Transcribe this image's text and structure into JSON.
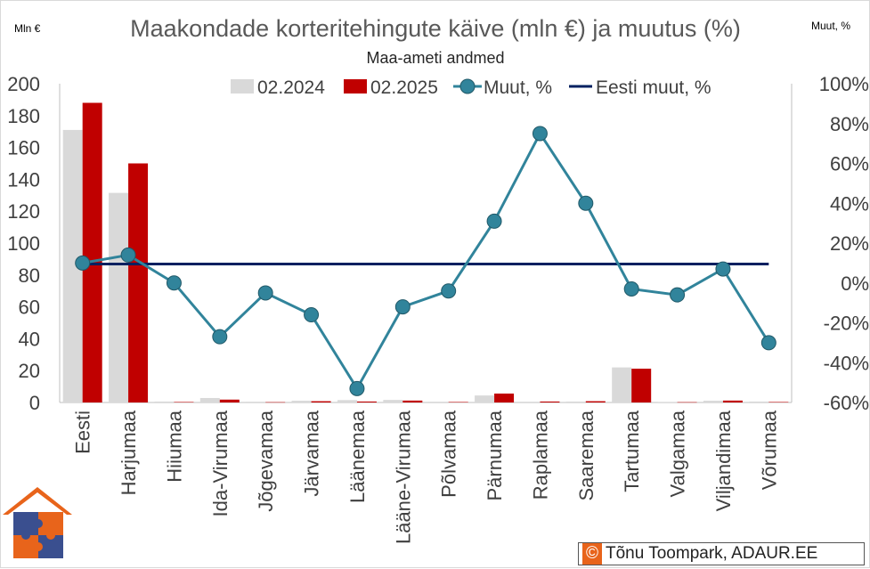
{
  "chart_data": {
    "type": "bar",
    "title": "Maakondade korteritehingute käive (mln €) ja muutus (%)",
    "subtitle": "Maa-ameti andmed",
    "y_left_unit": "Mln €",
    "y_right_unit": "Muut, %",
    "ylim_left": [
      0,
      200
    ],
    "ylim_right": [
      -60,
      100
    ],
    "left_ticks": [
      0,
      20,
      40,
      60,
      80,
      100,
      120,
      140,
      160,
      180,
      200
    ],
    "right_ticks": [
      "-60%",
      "-40%",
      "-20%",
      "0%",
      "20%",
      "40%",
      "60%",
      "80%",
      "100%"
    ],
    "right_tick_values": [
      -60,
      -40,
      -20,
      0,
      20,
      40,
      60,
      80,
      100
    ],
    "categories": [
      "Eesti",
      "Harjumaa",
      "Hiiumaa",
      "Ida-Virumaa",
      "Jõgevamaa",
      "Järvamaa",
      "Läänemaa",
      "Lääne-Virumaa",
      "Põlvamaa",
      "Pärnumaa",
      "Raplamaa",
      "Saaremaa",
      "Tartumaa",
      "Valgamaa",
      "Viljandimaa",
      "Võrumaa"
    ],
    "series": [
      {
        "name": "02.2024",
        "kind": "bar",
        "color": "#d9d9d9",
        "values": [
          171,
          131.5,
          0.6,
          2.8,
          0.5,
          1.1,
          1.5,
          1.6,
          0.5,
          4.4,
          0.5,
          0.6,
          22,
          0.4,
          1.1,
          0.6
        ]
      },
      {
        "name": "02.2025",
        "kind": "bar",
        "color": "#c00000",
        "values": [
          188,
          150,
          0.3,
          1.8,
          0.2,
          0.8,
          0.6,
          1.2,
          0.3,
          5.6,
          0.6,
          0.8,
          21.2,
          0.2,
          1.2,
          0.3
        ]
      },
      {
        "name": "Muut, %",
        "kind": "line-marker",
        "color": "#31849b",
        "values": [
          10,
          14,
          0,
          -27,
          -5,
          -16,
          -53,
          -12,
          -4,
          31,
          75,
          40,
          -3,
          -6,
          7,
          -30
        ]
      },
      {
        "name": "Eesti muut, %",
        "kind": "line",
        "color": "#002060",
        "values": [
          9.5,
          9.5,
          9.5,
          9.5,
          9.5,
          9.5,
          9.5,
          9.5,
          9.5,
          9.5,
          9.5,
          9.5,
          9.5,
          9.5,
          9.5,
          9.5
        ]
      }
    ],
    "legend": [
      "02.2024",
      "02.2025",
      "Muut, %",
      "Eesti muut, %"
    ]
  },
  "credit": {
    "symbol": "©",
    "text": "Tõnu Toompark, ADAUR.EE"
  }
}
